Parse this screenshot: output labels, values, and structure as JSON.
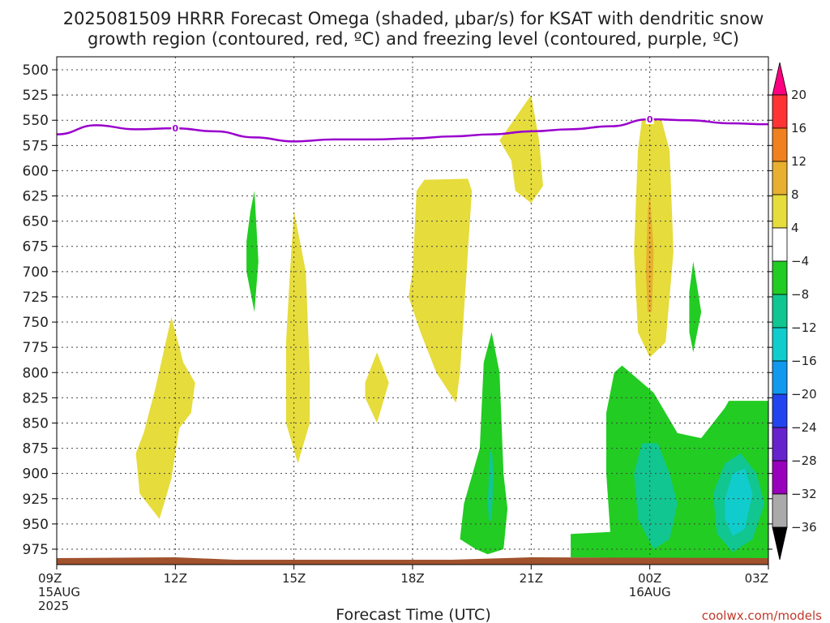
{
  "chart_data": {
    "type": "contour",
    "title_line1": "2025081509 HRRR Forecast Omega (shaded, μbar/s) for KSAT with dendritic snow",
    "title_line2": "growth region (contoured, red, ºC) and freezing level (contoured, purple, ºC)",
    "xlabel": "Forecast Time (UTC)",
    "credit": "coolwx.com/models",
    "x_range_hours": [
      0,
      18
    ],
    "y_range_hpa": [
      490,
      990
    ],
    "y_ticks": [
      500,
      525,
      550,
      575,
      600,
      625,
      650,
      675,
      700,
      725,
      750,
      775,
      800,
      825,
      850,
      875,
      900,
      925,
      950,
      975
    ],
    "x_ticks": [
      {
        "hour": 0,
        "lines": [
          "09Z",
          "15AUG",
          "2025"
        ]
      },
      {
        "hour": 3,
        "lines": [
          "12Z"
        ]
      },
      {
        "hour": 6,
        "lines": [
          "15Z"
        ]
      },
      {
        "hour": 9,
        "lines": [
          "18Z"
        ]
      },
      {
        "hour": 12,
        "lines": [
          "21Z"
        ]
      },
      {
        "hour": 15,
        "lines": [
          "00Z",
          "16AUG"
        ]
      },
      {
        "hour": 18,
        "lines": [
          "03Z"
        ]
      }
    ],
    "colorbar": {
      "levels": [
        "20",
        "16",
        "12",
        "8",
        "4",
        "−4",
        "−8",
        "−12",
        "−16",
        "−20",
        "−24",
        "−28",
        "−32",
        "−36"
      ],
      "colors": [
        "#ff0055",
        "#ff3333",
        "#f08020",
        "#e8b030",
        "#e6dc3c",
        "#ffffff",
        "#22cc22",
        "#11c690",
        "#11cccc",
        "#1199ee",
        "#2244ee",
        "#6622cc",
        "#9900bb",
        "#aaaaaa",
        "#000000"
      ],
      "top_arrow_color": "#ff0080",
      "bottom_arrow_color": "#000000"
    },
    "freezing_level": {
      "color": "#9900cc",
      "label": "0",
      "label_points": [
        {
          "hour": 3,
          "hpa": 558
        },
        {
          "hour": 15,
          "hpa": 549
        }
      ],
      "points": [
        {
          "hour": 0,
          "hpa": 564
        },
        {
          "hour": 1,
          "hpa": 555
        },
        {
          "hour": 2,
          "hpa": 559
        },
        {
          "hour": 3,
          "hpa": 558
        },
        {
          "hour": 4,
          "hpa": 561
        },
        {
          "hour": 5,
          "hpa": 567
        },
        {
          "hour": 6,
          "hpa": 571
        },
        {
          "hour": 7,
          "hpa": 569
        },
        {
          "hour": 8,
          "hpa": 569
        },
        {
          "hour": 9,
          "hpa": 568
        },
        {
          "hour": 10,
          "hpa": 566
        },
        {
          "hour": 11,
          "hpa": 564
        },
        {
          "hour": 12,
          "hpa": 561
        },
        {
          "hour": 13,
          "hpa": 559
        },
        {
          "hour": 14,
          "hpa": 556
        },
        {
          "hour": 15,
          "hpa": 549
        },
        {
          "hour": 16,
          "hpa": 550
        },
        {
          "hour": 17,
          "hpa": 553
        },
        {
          "hour": 18,
          "hpa": 554
        }
      ]
    },
    "shaded_regions": [
      {
        "color": "#e6dc3c",
        "points": [
          [
            2,
            880
          ],
          [
            2.2,
            860
          ],
          [
            2.5,
            815
          ],
          [
            2.9,
            745
          ],
          [
            3.2,
            790
          ],
          [
            3.5,
            810
          ],
          [
            3.4,
            840
          ],
          [
            3.1,
            855
          ],
          [
            2.9,
            905
          ],
          [
            2.6,
            945
          ],
          [
            2.1,
            920
          ]
        ]
      },
      {
        "color": "#22cc22",
        "points": [
          [
            4.8,
            670
          ],
          [
            4.9,
            640
          ],
          [
            5.0,
            620
          ],
          [
            5.1,
            690
          ],
          [
            5.0,
            740
          ],
          [
            4.8,
            700
          ]
        ]
      },
      {
        "color": "#e6dc3c",
        "points": [
          [
            5.8,
            770
          ],
          [
            5.9,
            700
          ],
          [
            6.0,
            640
          ],
          [
            6.3,
            700
          ],
          [
            6.4,
            800
          ],
          [
            6.4,
            850
          ],
          [
            6.1,
            890
          ],
          [
            5.8,
            850
          ]
        ]
      },
      {
        "color": "#e6dc3c",
        "points": [
          [
            7.8,
            810
          ],
          [
            8.1,
            780
          ],
          [
            8.4,
            810
          ],
          [
            8.1,
            850
          ],
          [
            7.8,
            825
          ]
        ]
      },
      {
        "color": "#e6dc3c",
        "points": [
          [
            9.0,
            700
          ],
          [
            9.1,
            620
          ],
          [
            9.3,
            609
          ],
          [
            10.4,
            608
          ],
          [
            10.5,
            620
          ],
          [
            10.4,
            680
          ],
          [
            10.3,
            740
          ],
          [
            10.2,
            800
          ],
          [
            10.1,
            830
          ],
          [
            9.6,
            800
          ],
          [
            9.2,
            760
          ],
          [
            8.9,
            725
          ]
        ]
      },
      {
        "color": "#e6dc3c",
        "points": [
          [
            11.2,
            570
          ],
          [
            12.0,
            525
          ],
          [
            12.2,
            570
          ],
          [
            12.3,
            615
          ],
          [
            12.0,
            632
          ],
          [
            11.6,
            620
          ],
          [
            11.5,
            590
          ]
        ]
      },
      {
        "color": "#22cc22",
        "points": [
          [
            10.2,
            965
          ],
          [
            10.3,
            930
          ],
          [
            10.7,
            875
          ],
          [
            10.8,
            790
          ],
          [
            11.0,
            760
          ],
          [
            11.2,
            800
          ],
          [
            11.3,
            900
          ],
          [
            11.4,
            935
          ],
          [
            11.3,
            975
          ],
          [
            10.9,
            980
          ],
          [
            10.6,
            975
          ]
        ]
      },
      {
        "color": "#11c690",
        "points": [
          [
            10.9,
            930
          ],
          [
            10.95,
            880
          ],
          [
            11.0,
            875
          ],
          [
            11.05,
            900
          ],
          [
            11.0,
            948
          ],
          [
            10.93,
            945
          ]
        ]
      },
      {
        "color": "#e6dc3c",
        "points": [
          [
            14.6,
            680
          ],
          [
            14.7,
            580
          ],
          [
            14.8,
            550
          ],
          [
            15.3,
            550
          ],
          [
            15.5,
            580
          ],
          [
            15.6,
            680
          ],
          [
            15.4,
            770
          ],
          [
            15.0,
            785
          ],
          [
            14.7,
            760
          ]
        ]
      },
      {
        "color": "#e8b030",
        "points": [
          [
            14.9,
            700
          ],
          [
            14.95,
            640
          ],
          [
            15.0,
            620
          ],
          [
            15.1,
            680
          ],
          [
            15.05,
            740
          ],
          [
            14.95,
            740
          ]
        ]
      },
      {
        "color": "#22cc22",
        "points": [
          [
            16.0,
            720
          ],
          [
            16.1,
            690
          ],
          [
            16.3,
            740
          ],
          [
            16.1,
            780
          ],
          [
            16.0,
            760
          ]
        ]
      },
      {
        "color": "#22cc22",
        "points": [
          [
            13.0,
            960
          ],
          [
            14.0,
            958
          ],
          [
            13.9,
            900
          ],
          [
            13.9,
            840
          ],
          [
            14.1,
            800
          ],
          [
            14.3,
            793
          ],
          [
            15.1,
            820
          ],
          [
            15.7,
            860
          ],
          [
            16.3,
            865
          ],
          [
            16.9,
            835
          ],
          [
            17.0,
            828
          ],
          [
            18.0,
            828
          ],
          [
            18.0,
            985
          ],
          [
            13.0,
            983
          ]
        ]
      },
      {
        "color": "#11c690",
        "points": [
          [
            14.6,
            900
          ],
          [
            14.8,
            870
          ],
          [
            15.2,
            870
          ],
          [
            15.5,
            900
          ],
          [
            15.7,
            930
          ],
          [
            15.5,
            965
          ],
          [
            15.1,
            975
          ],
          [
            14.7,
            945
          ]
        ]
      },
      {
        "color": "#11c690",
        "points": [
          [
            16.6,
            920
          ],
          [
            16.9,
            890
          ],
          [
            17.3,
            880
          ],
          [
            17.7,
            900
          ],
          [
            17.9,
            930
          ],
          [
            17.6,
            965
          ],
          [
            17.1,
            978
          ],
          [
            16.7,
            960
          ]
        ]
      },
      {
        "color": "#11cccc",
        "points": [
          [
            16.9,
            925
          ],
          [
            17.1,
            900
          ],
          [
            17.4,
            895
          ],
          [
            17.6,
            920
          ],
          [
            17.4,
            955
          ],
          [
            17.1,
            962
          ],
          [
            16.9,
            945
          ]
        ]
      }
    ],
    "ground": {
      "color": "#a0522d"
    }
  }
}
